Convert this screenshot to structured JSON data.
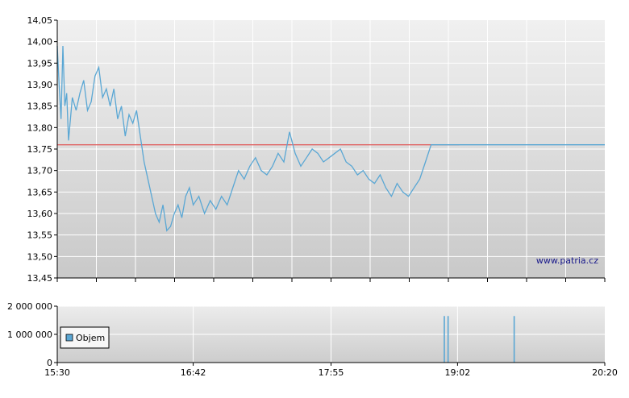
{
  "chart_data": [
    {
      "type": "line",
      "ylim": [
        13.45,
        14.05
      ],
      "y_ticks": [
        "14,05",
        "14,00",
        "13,95",
        "13,90",
        "13,85",
        "13,80",
        "13,75",
        "13,70",
        "13,65",
        "13,60",
        "13,55",
        "13,50",
        "13,45"
      ],
      "y_tick_values": [
        14.05,
        14.0,
        13.95,
        13.9,
        13.85,
        13.8,
        13.75,
        13.7,
        13.65,
        13.6,
        13.55,
        13.5,
        13.45
      ],
      "xlim": [
        "15:30",
        "20:20"
      ],
      "reference_line": {
        "value": 13.76,
        "color": "#e06666"
      },
      "series": [
        {
          "color": "#5aa7d4",
          "x": [
            "15:30",
            "15:31",
            "15:32",
            "15:33",
            "15:34",
            "15:35",
            "15:36",
            "15:38",
            "15:40",
            "15:42",
            "15:44",
            "15:46",
            "15:48",
            "15:50",
            "15:52",
            "15:54",
            "15:56",
            "15:58",
            "16:00",
            "16:02",
            "16:04",
            "16:06",
            "16:08",
            "16:10",
            "16:12",
            "16:14",
            "16:16",
            "16:18",
            "16:20",
            "16:22",
            "16:24",
            "16:26",
            "16:28",
            "16:30",
            "16:32",
            "16:34",
            "16:36",
            "16:38",
            "16:40",
            "16:42",
            "16:45",
            "16:48",
            "16:51",
            "16:54",
            "16:57",
            "17:00",
            "17:03",
            "17:06",
            "17:09",
            "17:12",
            "17:15",
            "17:18",
            "17:21",
            "17:24",
            "17:27",
            "17:30",
            "17:33",
            "17:36",
            "17:39",
            "17:42",
            "17:45",
            "17:48",
            "17:51",
            "17:54",
            "17:57",
            "18:00",
            "18:03",
            "18:06",
            "18:09",
            "18:12",
            "18:15",
            "18:18",
            "18:21",
            "18:24",
            "18:27",
            "18:30",
            "18:33",
            "18:36",
            "18:39",
            "18:42",
            "18:45",
            "18:48",
            "18:51",
            "18:54",
            "18:57",
            "19:00",
            "19:02",
            "19:10",
            "19:30",
            "20:00",
            "20:20"
          ],
          "y": [
            13.99,
            13.9,
            13.82,
            13.99,
            13.85,
            13.88,
            13.77,
            13.87,
            13.84,
            13.88,
            13.91,
            13.84,
            13.86,
            13.92,
            13.94,
            13.87,
            13.89,
            13.85,
            13.89,
            13.82,
            13.85,
            13.78,
            13.83,
            13.81,
            13.84,
            13.78,
            13.72,
            13.68,
            13.64,
            13.6,
            13.58,
            13.62,
            13.56,
            13.57,
            13.6,
            13.62,
            13.59,
            13.64,
            13.66,
            13.62,
            13.64,
            13.6,
            13.63,
            13.61,
            13.64,
            13.62,
            13.66,
            13.7,
            13.68,
            13.71,
            13.73,
            13.7,
            13.69,
            13.71,
            13.74,
            13.72,
            13.79,
            13.74,
            13.71,
            13.73,
            13.75,
            13.74,
            13.72,
            13.73,
            13.74,
            13.75,
            13.72,
            13.71,
            13.69,
            13.7,
            13.68,
            13.67,
            13.69,
            13.66,
            13.64,
            13.67,
            13.65,
            13.64,
            13.66,
            13.68,
            13.72,
            13.76,
            13.76,
            13.76,
            13.76,
            13.76,
            13.76,
            13.76,
            13.76,
            13.76,
            13.76
          ]
        }
      ],
      "watermark": "www.patria.cz"
    },
    {
      "type": "bar",
      "ylim": [
        0,
        2000000
      ],
      "y_ticks": [
        "2 000 000",
        "1 000 000",
        "0"
      ],
      "y_tick_values": [
        2000000,
        1000000,
        0
      ],
      "x_ticks": [
        "15:30",
        "16:42",
        "17:55",
        "19:02",
        "20:20"
      ],
      "xlim": [
        "15:30",
        "20:20"
      ],
      "series": [
        {
          "name": "Objem",
          "color": "#5aa7d4",
          "x": [
            "18:55",
            "18:57",
            "19:32"
          ],
          "values": [
            1650000,
            1650000,
            1650000
          ]
        }
      ],
      "legend": {
        "label": "Objem",
        "position": "left"
      }
    }
  ]
}
